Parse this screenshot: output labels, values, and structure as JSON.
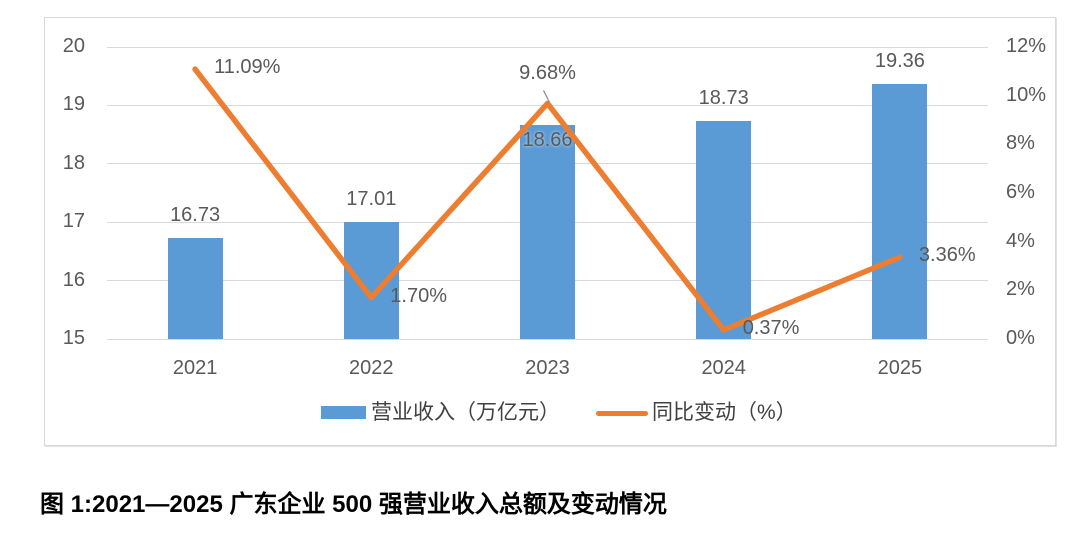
{
  "caption": "图 1:2021—2025 广东企业 500 强营业收入总额及变动情况",
  "chart_data": {
    "type": "combo-bar-line",
    "categories": [
      "2021",
      "2022",
      "2023",
      "2024",
      "2025"
    ],
    "series": [
      {
        "name": "营业收入（万亿元）",
        "type": "bar",
        "axis": "left",
        "color": "#5B9BD5",
        "values": [
          16.73,
          17.01,
          18.66,
          18.73,
          19.36
        ],
        "labels": [
          "16.73",
          "17.01",
          "18.66",
          "18.73",
          "19.36"
        ]
      },
      {
        "name": "同比变动（%）",
        "type": "line",
        "axis": "right",
        "color": "#ED7D31",
        "values": [
          11.09,
          1.7,
          9.68,
          0.37,
          3.36
        ],
        "labels": [
          "11.09%",
          "1.70%",
          "9.68%",
          "0.37%",
          "3.36%"
        ]
      }
    ],
    "left_axis": {
      "min": 15,
      "max": 20,
      "step": 1,
      "ticks": [
        "20",
        "19",
        "18",
        "17",
        "16",
        "15"
      ]
    },
    "right_axis": {
      "min": 0,
      "max": 12,
      "step": 2,
      "ticks": [
        "12%",
        "10%",
        "8%",
        "6%",
        "4%",
        "2%",
        "0%"
      ]
    },
    "bar_label_placement": [
      "above",
      "above",
      "inside",
      "above",
      "above"
    ],
    "line_label_placement": [
      "right",
      "right",
      "above",
      "right",
      "right"
    ],
    "grid": true,
    "legend_position": "bottom",
    "colors": {
      "bar": "#5B9BD5",
      "line": "#ED7D31",
      "gridline": "#D9D9D9",
      "tick_text": "#595959",
      "border": "#D9D9D9",
      "caption_text": "#000000"
    }
  }
}
